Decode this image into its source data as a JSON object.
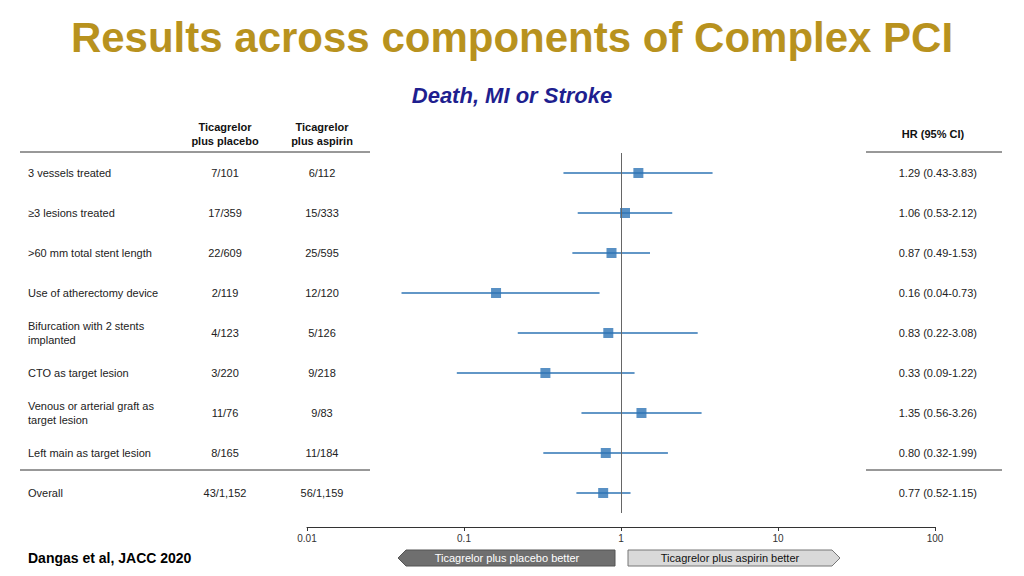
{
  "chart_data": {
    "type": "forest",
    "title": "Results across components of Complex PCI",
    "subtitle": "Death, MI or Stroke",
    "columns": [
      "Ticagrelor\nplus placebo",
      "Ticagrelor\nplus aspirin"
    ],
    "ci_header": "HR (95% CI)",
    "categories": [
      "3 vessels treated",
      "≥3 lesions treated",
      ">60 mm total stent length",
      "Use of atherectomy device",
      "Bifurcation with 2 stents\nimplanted",
      "CTO as target lesion",
      "Venous or arterial graft as\ntarget lesion",
      "Left main as target lesion",
      "Overall"
    ],
    "placebo_events": [
      "7/101",
      "17/359",
      "22/609",
      "2/119",
      "4/123",
      "3/220",
      "11/76",
      "8/165",
      "43/1,152"
    ],
    "aspirin_events": [
      "6/112",
      "15/333",
      "25/595",
      "12/120",
      "5/126",
      "9/218",
      "9/83",
      "11/184",
      "56/1,159"
    ],
    "values": [
      1.29,
      1.06,
      0.87,
      0.16,
      0.83,
      0.33,
      1.35,
      0.8,
      0.77
    ],
    "ci_lower": [
      0.43,
      0.53,
      0.49,
      0.04,
      0.22,
      0.09,
      0.56,
      0.32,
      0.52
    ],
    "ci_upper": [
      3.83,
      2.12,
      1.53,
      0.73,
      3.08,
      1.22,
      3.26,
      1.99,
      1.15
    ],
    "value_labels": [
      "1.29 (0.43-3.83)",
      "1.06 (0.53-2.12)",
      "0.87 (0.49-1.53)",
      "0.16 (0.04-0.73)",
      "0.83 (0.22-3.08)",
      "0.33 (0.09-1.22)",
      "1.35 (0.56-3.26)",
      "0.80 (0.32-1.99)",
      "0.77 (0.52-1.15)"
    ],
    "xlim": [
      0.01,
      100
    ],
    "xticks": [
      0.01,
      0.1,
      1,
      10,
      100
    ],
    "log": "x",
    "reference_line": 1,
    "color": "#2e74b5",
    "marker": "square",
    "annotations": [
      "Ticagrelor plus placebo better",
      "Ticagrelor plus aspirin better"
    ],
    "source": "Dangas et al, JACC 2020"
  }
}
